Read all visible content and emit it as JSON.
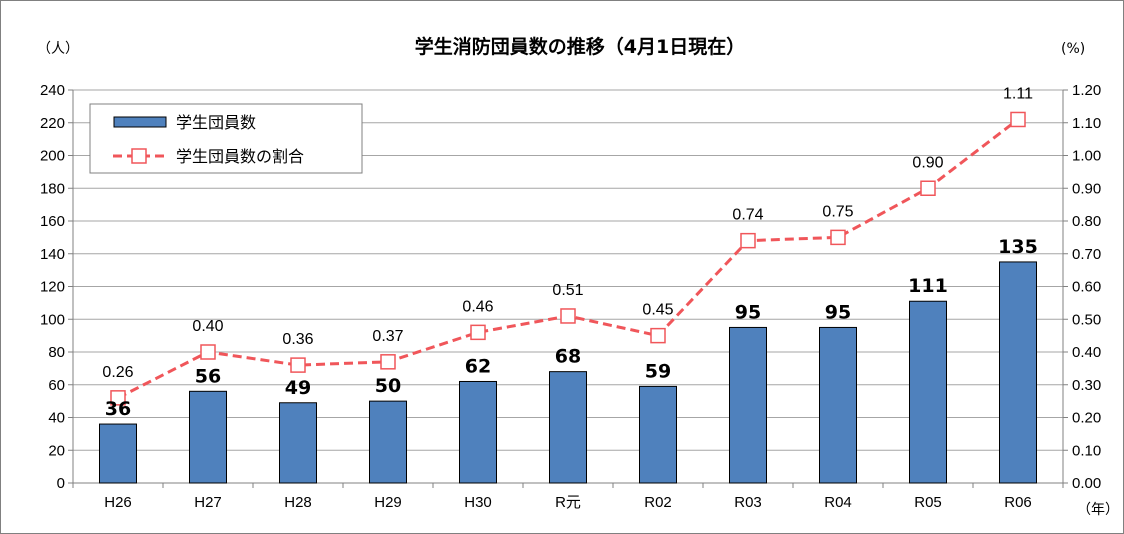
{
  "chart_data": {
    "type": "bar",
    "title": "学生消防団員数の推移（4月1日現在）",
    "y_left_unit": "（人）",
    "y_right_unit": "(%)",
    "x_unit": "（年）",
    "categories": [
      "H26",
      "H27",
      "H28",
      "H29",
      "H30",
      "R元",
      "R02",
      "R03",
      "R04",
      "R05",
      "R06"
    ],
    "ylim_left": [
      0,
      240
    ],
    "yticks_left": [
      "0",
      "20",
      "40",
      "60",
      "80",
      "100",
      "120",
      "140",
      "160",
      "180",
      "200",
      "220",
      "240"
    ],
    "ylim_right": [
      0,
      1.2
    ],
    "yticks_right": [
      "0.00",
      "0.10",
      "0.20",
      "0.30",
      "0.40",
      "0.50",
      "0.60",
      "0.70",
      "0.80",
      "0.90",
      "1.00",
      "1.10",
      "1.20"
    ],
    "grid": true,
    "legend_position": "top-left",
    "series": [
      {
        "name": "学生団員数",
        "type": "bar",
        "axis": "left",
        "color": "#4F81BD",
        "values": [
          36,
          56,
          49,
          50,
          62,
          68,
          59,
          95,
          95,
          111,
          135
        ],
        "labels": [
          "36",
          "56",
          "49",
          "50",
          "62",
          "68",
          "59",
          "95",
          "95",
          "111",
          "135"
        ]
      },
      {
        "name": "学生団員数の割合",
        "type": "line",
        "axis": "right",
        "color": "#F0565A",
        "values": [
          0.26,
          0.4,
          0.36,
          0.37,
          0.46,
          0.51,
          0.45,
          0.74,
          0.75,
          0.9,
          1.11
        ],
        "labels": [
          "0.26",
          "0.40",
          "0.36",
          "0.37",
          "0.46",
          "0.51",
          "0.45",
          "0.74",
          "0.75",
          "0.90",
          "1.11"
        ]
      }
    ]
  }
}
